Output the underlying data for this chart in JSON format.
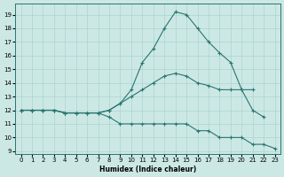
{
  "xlabel": "Humidex (Indice chaleur)",
  "bg_color": "#cce8e5",
  "grid_color": "#aad4d0",
  "line_color": "#2a7570",
  "xlim": [
    -0.5,
    23.5
  ],
  "ylim": [
    8.8,
    19.8
  ],
  "yticks": [
    9,
    10,
    11,
    12,
    13,
    14,
    15,
    16,
    17,
    18,
    19
  ],
  "xticks": [
    0,
    1,
    2,
    3,
    4,
    5,
    6,
    7,
    8,
    9,
    10,
    11,
    12,
    13,
    14,
    15,
    16,
    17,
    18,
    19,
    20,
    21,
    22,
    23
  ],
  "x_max": [
    0,
    1,
    2,
    3,
    4,
    5,
    6,
    7,
    8,
    9,
    10,
    11,
    12,
    13,
    14,
    15,
    16,
    17,
    18,
    19,
    20,
    21,
    22
  ],
  "y_max": [
    12,
    12,
    12,
    12,
    11.8,
    11.8,
    11.8,
    11.8,
    12.0,
    12.5,
    13.5,
    15.5,
    16.5,
    18.0,
    19.2,
    19.0,
    18.0,
    17.0,
    16.2,
    15.5,
    13.5,
    12.0,
    11.5
  ],
  "x_mid": [
    0,
    1,
    2,
    3,
    4,
    5,
    6,
    7,
    8,
    9,
    10,
    11,
    12,
    13,
    14,
    15,
    16,
    17,
    18,
    19,
    20,
    21
  ],
  "y_mid": [
    12,
    12,
    12,
    12,
    11.8,
    11.8,
    11.8,
    11.8,
    12.0,
    12.5,
    13.0,
    13.5,
    14.0,
    14.5,
    14.7,
    14.5,
    14.0,
    13.8,
    13.5,
    13.5,
    13.5,
    13.5
  ],
  "x_min": [
    0,
    1,
    2,
    3,
    4,
    5,
    6,
    7,
    8,
    9,
    10,
    11,
    12,
    13,
    14,
    15,
    16,
    17,
    18,
    19,
    20,
    21,
    22,
    23
  ],
  "y_min": [
    12,
    12,
    12,
    12,
    11.8,
    11.8,
    11.8,
    11.8,
    11.5,
    11.0,
    11.0,
    11.0,
    11.0,
    11.0,
    11.0,
    11.0,
    10.5,
    10.5,
    10.0,
    10.0,
    10.0,
    9.5,
    9.5,
    9.2
  ]
}
